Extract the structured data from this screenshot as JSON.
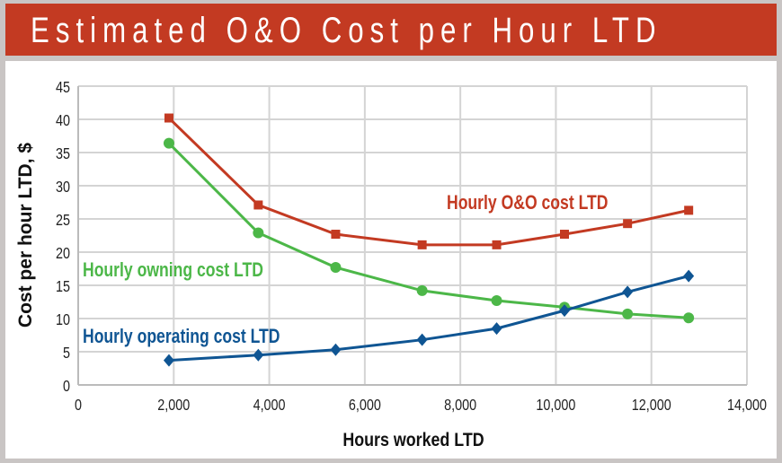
{
  "title": "Estimated O&O Cost per Hour LTD",
  "chart_data": {
    "type": "line",
    "xlabel": "Hours worked LTD",
    "ylabel": "Cost per hour LTD, $",
    "xlim": [
      0,
      14000
    ],
    "ylim": [
      0,
      45
    ],
    "xticks": [
      0,
      2000,
      4000,
      6000,
      8000,
      10000,
      12000,
      14000
    ],
    "xtick_labels": [
      "0",
      "2,000",
      "4,000",
      "6,000",
      "8,000",
      "10,000",
      "12,000",
      "14,000"
    ],
    "yticks": [
      0,
      5,
      10,
      15,
      20,
      25,
      30,
      35,
      40,
      45
    ],
    "ytick_labels": [
      "0",
      "5",
      "10",
      "15",
      "20",
      "25",
      "30",
      "35",
      "40",
      "45"
    ],
    "grid": true,
    "x": [
      1900,
      3770,
      5390,
      7200,
      8760,
      10180,
      11500,
      12780
    ],
    "series": [
      {
        "name": "Hourly O&O cost LTD",
        "color": "#c33a22",
        "marker": "square",
        "values": [
          40.2,
          27.1,
          22.7,
          21.1,
          21.1,
          22.7,
          24.3,
          26.3
        ]
      },
      {
        "name": "Hourly owning cost LTD",
        "color": "#4cb748",
        "marker": "circle",
        "values": [
          36.4,
          22.9,
          17.7,
          14.2,
          12.7,
          11.7,
          10.7,
          10.1
        ]
      },
      {
        "name": "Hourly operating cost LTD",
        "color": "#0f5593",
        "marker": "diamond",
        "values": [
          3.7,
          4.5,
          5.3,
          6.8,
          8.5,
          11.2,
          14.0,
          16.4
        ]
      }
    ]
  }
}
